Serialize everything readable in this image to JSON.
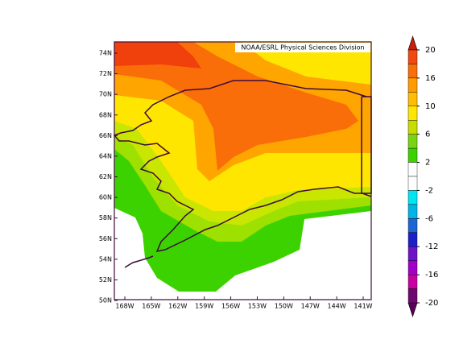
{
  "credit": "NOAA/ESRL Physical Sciences Division",
  "lat_labels": [
    "74N",
    "72N",
    "70N",
    "68N",
    "66N",
    "64N",
    "62N",
    "60N",
    "58N",
    "56N",
    "54N",
    "52N",
    "50N"
  ],
  "lon_labels": [
    "168W",
    "165W",
    "162W",
    "159W",
    "156W",
    "153W",
    "150W",
    "147W",
    "144W",
    "141W"
  ],
  "colorbar": {
    "ticks": [
      20,
      16,
      10,
      6,
      2,
      -2,
      -6,
      -12,
      -16,
      -20
    ],
    "over_color": "#c81e0a",
    "under_color": "#5a005a",
    "colors": [
      "#f04a12",
      "#fa6e0a",
      "#ff9a00",
      "#ffbc00",
      "#ffe600",
      "#c8dc00",
      "#78d414",
      "#3cd200",
      "#ffffff",
      "#ffffff",
      "#00e6f0",
      "#00b4e6",
      "#1e64d2",
      "#1e1ec8",
      "#6e14c8",
      "#a000c8",
      "#c800a0",
      "#6e0a6e"
    ]
  }
}
